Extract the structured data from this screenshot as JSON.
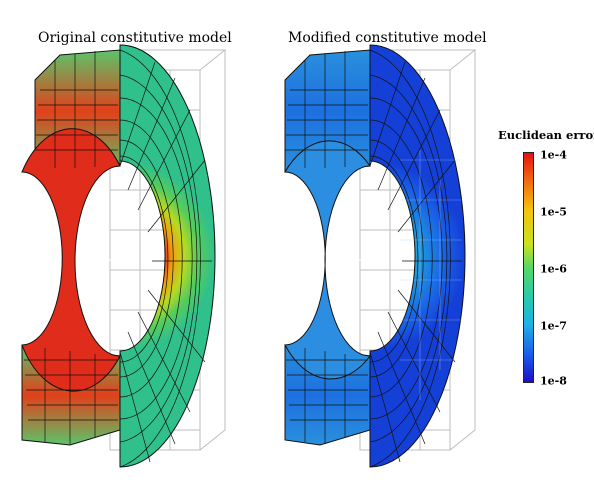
{
  "titles": {
    "left": "Original constitutive model",
    "right": "Modified constitutive model"
  },
  "colorbar": {
    "title": "Euclidean error",
    "ticks": [
      "1e-4",
      "1e-5",
      "1e-6",
      "1e-7",
      "1e-8"
    ],
    "colors": [
      "#e11410",
      "#f5c40c",
      "#55d866",
      "#1fb0e8",
      "#1a10c8"
    ]
  }
}
